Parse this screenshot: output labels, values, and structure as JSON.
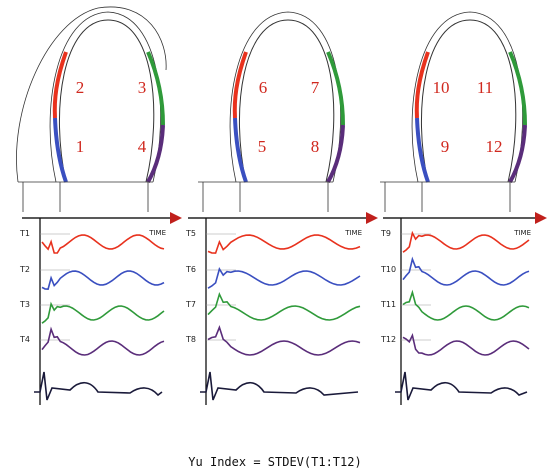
{
  "panels": [
    {
      "segments": [
        "1",
        "2",
        "3",
        "4"
      ],
      "traces": [
        "T1",
        "T2",
        "T3",
        "T4"
      ],
      "time_label": "TIME"
    },
    {
      "segments": [
        "5",
        "6",
        "7",
        "8"
      ],
      "traces": [
        "T5",
        "T6",
        "T7",
        "T8"
      ],
      "time_label": "TIME"
    },
    {
      "segments": [
        "9",
        "10",
        "11",
        "12"
      ],
      "traces": [
        "T9",
        "T10",
        "T11",
        "T12"
      ],
      "time_label": "TIME"
    }
  ],
  "formula": "Yu Index =  STDEV(T1:T12)"
}
